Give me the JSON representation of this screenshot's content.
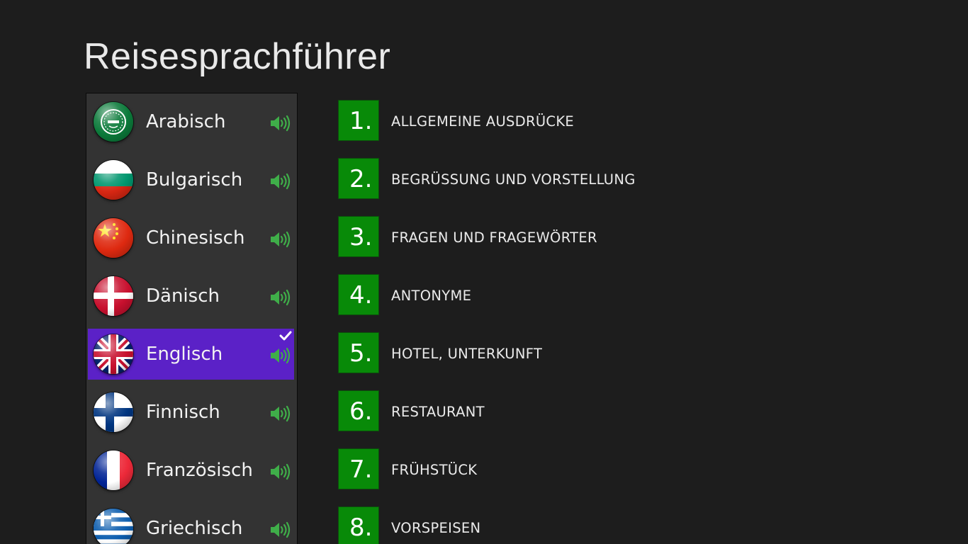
{
  "app": {
    "title": "Reisesprachführer"
  },
  "languages": [
    {
      "label": "Arabisch",
      "flag": "arab-league-flag-icon",
      "selected": false
    },
    {
      "label": "Bulgarisch",
      "flag": "bulgaria-flag-icon",
      "selected": false
    },
    {
      "label": "Chinesisch",
      "flag": "china-flag-icon",
      "selected": false
    },
    {
      "label": "Dänisch",
      "flag": "denmark-flag-icon",
      "selected": false
    },
    {
      "label": "Englisch",
      "flag": "uk-flag-icon",
      "selected": true
    },
    {
      "label": "Finnisch",
      "flag": "finland-flag-icon",
      "selected": false
    },
    {
      "label": "Französisch",
      "flag": "france-flag-icon",
      "selected": false
    },
    {
      "label": "Griechisch",
      "flag": "greece-flag-icon",
      "selected": false
    }
  ],
  "categories": [
    {
      "number": "1.",
      "label": "ALLGEMEINE AUSDRÜCKE"
    },
    {
      "number": "2.",
      "label": "BEGRÜSSUNG UND VORSTELLUNG"
    },
    {
      "number": "3.",
      "label": "FRAGEN UND FRAGEWÖRTER"
    },
    {
      "number": "4.",
      "label": "ANTONYME"
    },
    {
      "number": "5.",
      "label": "HOTEL, UNTERKUNFT"
    },
    {
      "number": "6.",
      "label": "RESTAURANT"
    },
    {
      "number": "7.",
      "label": "FRÜHSTÜCK"
    },
    {
      "number": "8.",
      "label": "VORSPEISEN"
    }
  ],
  "icons": {
    "speaker": "speaker-icon",
    "check": "checkmark-icon"
  },
  "colors": {
    "background": "#1d1d1d",
    "list_panel": "#333333",
    "selected": "#5b21c7",
    "category_tile": "#088a08",
    "speaker": "#3fae49"
  }
}
